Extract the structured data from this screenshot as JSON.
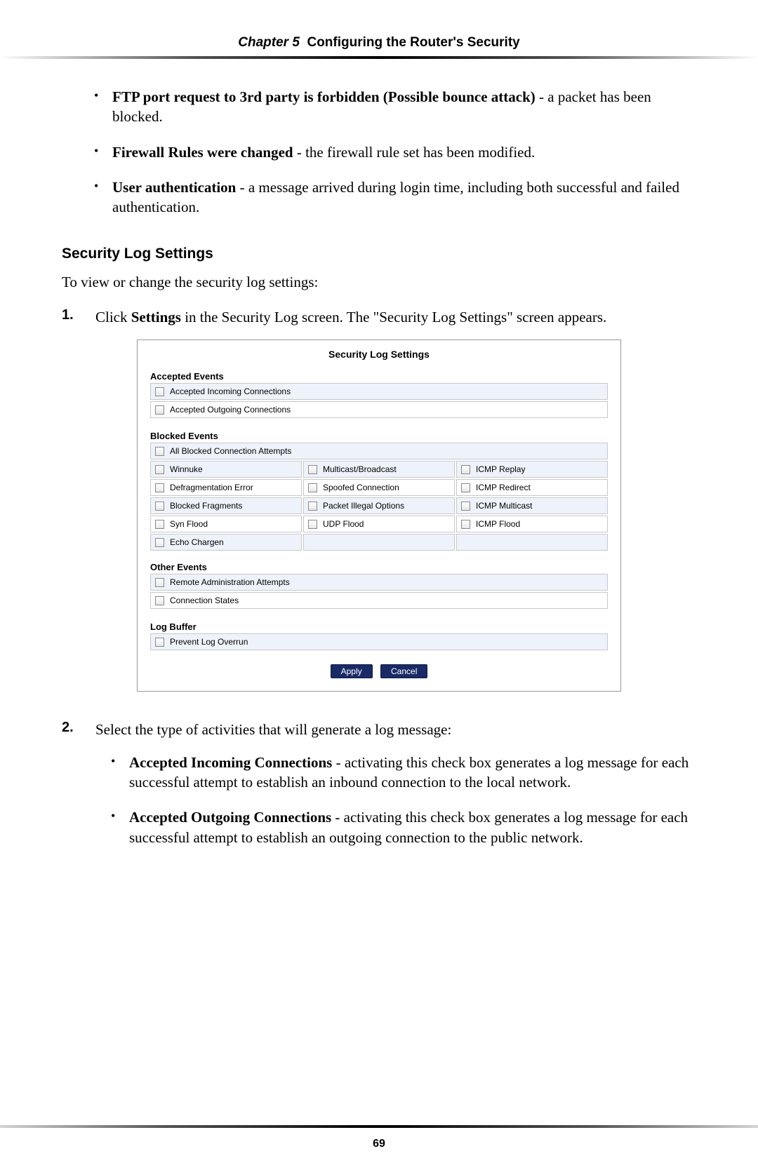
{
  "header": {
    "chapter_label": "Chapter 5",
    "chapter_title": "Configuring the Router's Security"
  },
  "top_bullets": [
    {
      "bold": "FTP port request to 3rd party is forbidden (Possible bounce attack)",
      "rest": " - a packet has been blocked."
    },
    {
      "bold": "Firewall Rules were changed",
      "rest": " - the firewall rule set has been modified."
    },
    {
      "bold": "User authentication",
      "rest": " - a message arrived during login time, including both successful and failed authentication."
    }
  ],
  "subheading": "Security Log Settings",
  "intro_para": "To view or change the security log settings:",
  "step1": {
    "num": "1.",
    "prefix": "Click ",
    "bold": "Settings",
    "rest": " in the Security Log screen. The \"Security Log Settings\" screen appears."
  },
  "screenshot": {
    "title": "Security Log Settings",
    "accepted": {
      "heading": "Accepted Events",
      "rows": [
        "Accepted Incoming Connections",
        "Accepted Outgoing Connections"
      ]
    },
    "blocked": {
      "heading": "Blocked Events",
      "top_row": "All Blocked Connection Attempts",
      "grid": [
        [
          "Winnuke",
          "Multicast/Broadcast",
          "ICMP Replay"
        ],
        [
          "Defragmentation Error",
          "Spoofed Connection",
          "ICMP Redirect"
        ],
        [
          "Blocked Fragments",
          "Packet Illegal Options",
          "ICMP Multicast"
        ],
        [
          "Syn Flood",
          "UDP Flood",
          "ICMP Flood"
        ],
        [
          "Echo Chargen",
          "",
          ""
        ]
      ],
      "row_backgrounds": [
        "#eef3fb",
        "#ffffff",
        "#eef3fb",
        "#ffffff",
        "#eef3fb"
      ]
    },
    "other": {
      "heading": "Other Events",
      "rows": [
        "Remote Administration Attempts",
        "Connection States"
      ]
    },
    "buffer": {
      "heading": "Log Buffer",
      "rows": [
        "Prevent Log Overrun"
      ]
    },
    "buttons": [
      "Apply",
      "Cancel"
    ]
  },
  "step2": {
    "num": "2.",
    "text": "Select the type of activities that will generate a log message:",
    "bullets": [
      {
        "bold": "Accepted Incoming Connections",
        "rest": " - activating this check box generates a log message for each successful attempt to establish an inbound connection to the local network."
      },
      {
        "bold": "Accepted Outgoing Connections",
        "rest": " - activating this check box generates a log message for each successful attempt to establish an outgoing connection to the public network."
      }
    ]
  },
  "page_number": "69"
}
